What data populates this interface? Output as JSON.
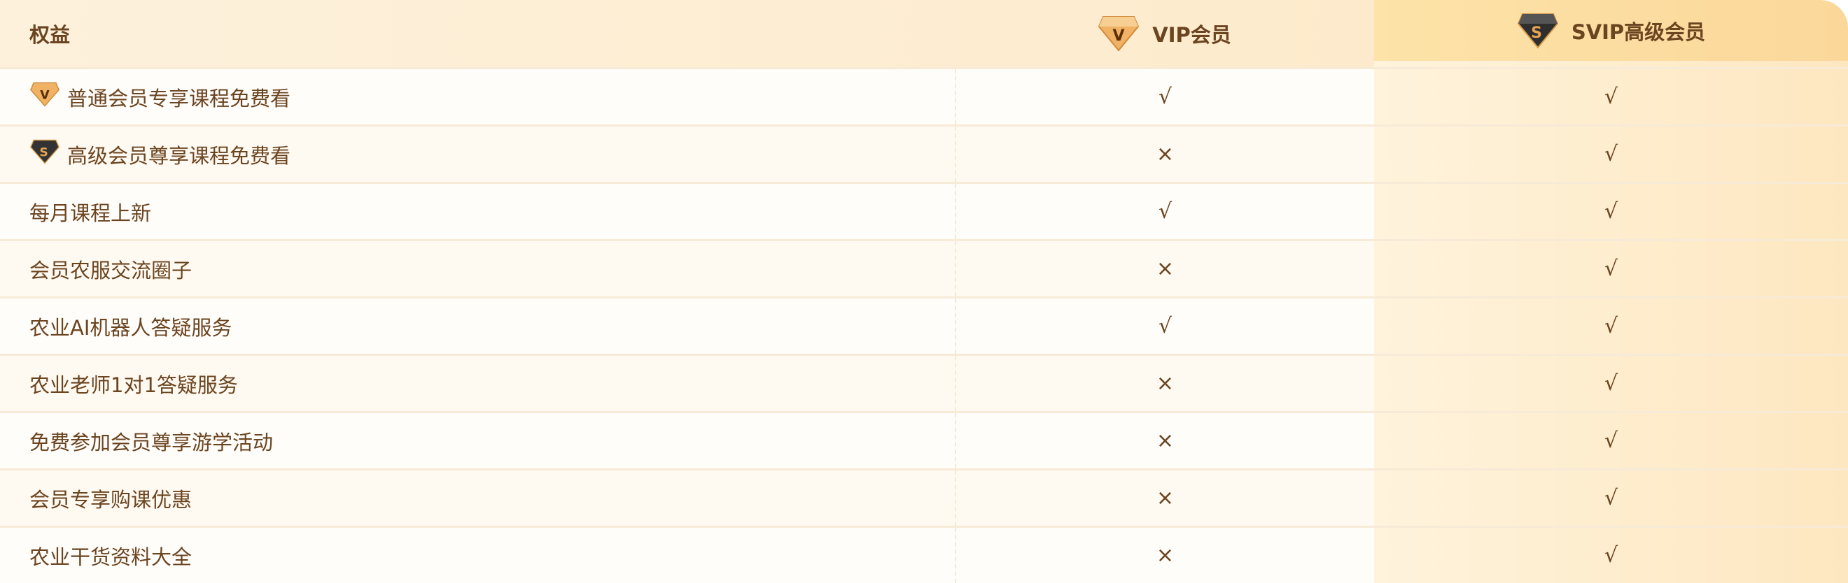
{
  "header": {
    "benefit": "权益",
    "vip": "VIP会员",
    "svip": "SVIP高级会员"
  },
  "colors": {
    "text": "#6b4420",
    "header_bg": "#fdf1dc",
    "svip_header_bg": "#fde3a8"
  },
  "icons": {
    "vip": "vip-diamond-icon",
    "svip": "svip-diamond-icon"
  },
  "rows": [
    {
      "name": "普通会员专享课程免费看",
      "icon": "vip",
      "vip": "√",
      "svip": "√"
    },
    {
      "name": "高级会员尊享课程免费看",
      "icon": "svip",
      "vip": "×",
      "svip": "√"
    },
    {
      "name": "每月课程上新",
      "vip": "√",
      "svip": "√"
    },
    {
      "name": "会员农服交流圈子",
      "vip": "×",
      "svip": "√"
    },
    {
      "name": "农业AI机器人答疑服务",
      "vip": "√",
      "svip": "√"
    },
    {
      "name": "农业老师1对1答疑服务",
      "vip": "×",
      "svip": "√"
    },
    {
      "name": "免费参加会员尊享游学活动",
      "vip": "×",
      "svip": "√"
    },
    {
      "name": "会员专享购课优惠",
      "vip": "×",
      "svip": "√"
    },
    {
      "name": "农业干货资料大全",
      "vip": "×",
      "svip": "√"
    }
  ]
}
